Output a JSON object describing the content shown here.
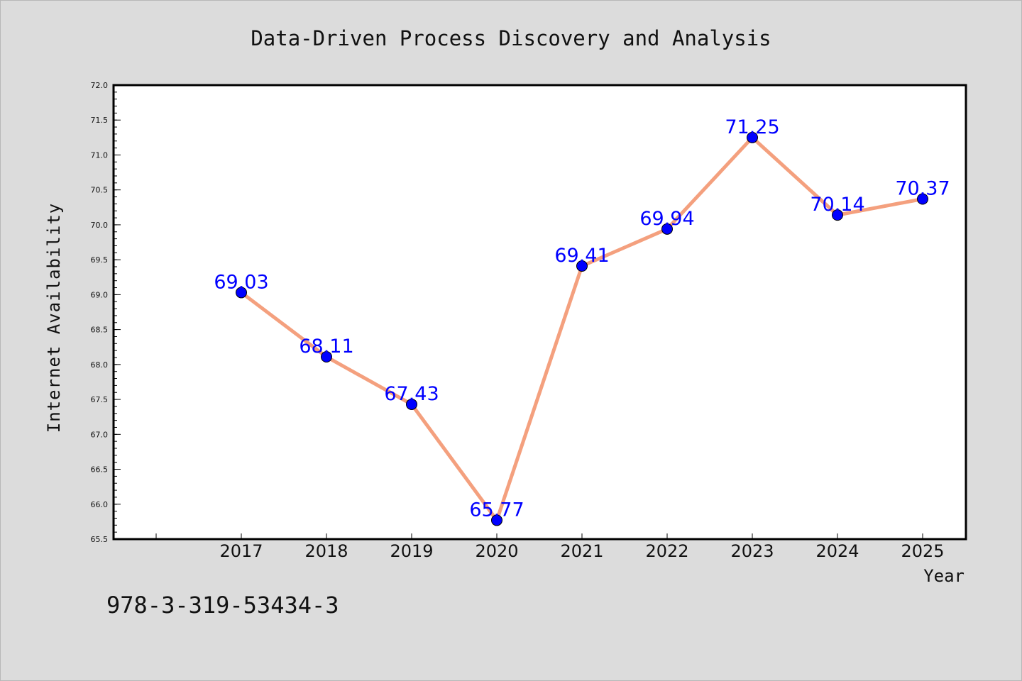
{
  "page": {
    "footer_code": "978-3-319-53434-3"
  },
  "colors": {
    "background": "#dcdcdc",
    "plot_bg": "#ffffff",
    "line": "#f4a07e",
    "marker": "#0000ff",
    "label": "#0000ff"
  },
  "chart_data": {
    "type": "line",
    "title": "Data-Driven Process Discovery and Analysis",
    "xlabel": "Year",
    "ylabel": "Internet Availability",
    "ylim": [
      65.5,
      72.0
    ],
    "yticks": [
      "65.5",
      "66.0",
      "66.5",
      "67.0",
      "67.5",
      "68.0",
      "68.5",
      "69.0",
      "69.5",
      "70.0",
      "70.5",
      "71.0",
      "71.5",
      "72.0"
    ],
    "grid": false,
    "legend": "none",
    "categories": [
      "2017",
      "2018",
      "2019",
      "2020",
      "2021",
      "2022",
      "2023",
      "2024",
      "2025"
    ],
    "values": [
      69.03,
      68.11,
      67.43,
      65.77,
      69.41,
      69.94,
      71.25,
      70.14,
      70.37
    ],
    "value_labels": [
      "69.03",
      "68.11",
      "67.43",
      "65.77",
      "69.41",
      "69.94",
      "71.25",
      "70.14",
      "70.37"
    ]
  }
}
